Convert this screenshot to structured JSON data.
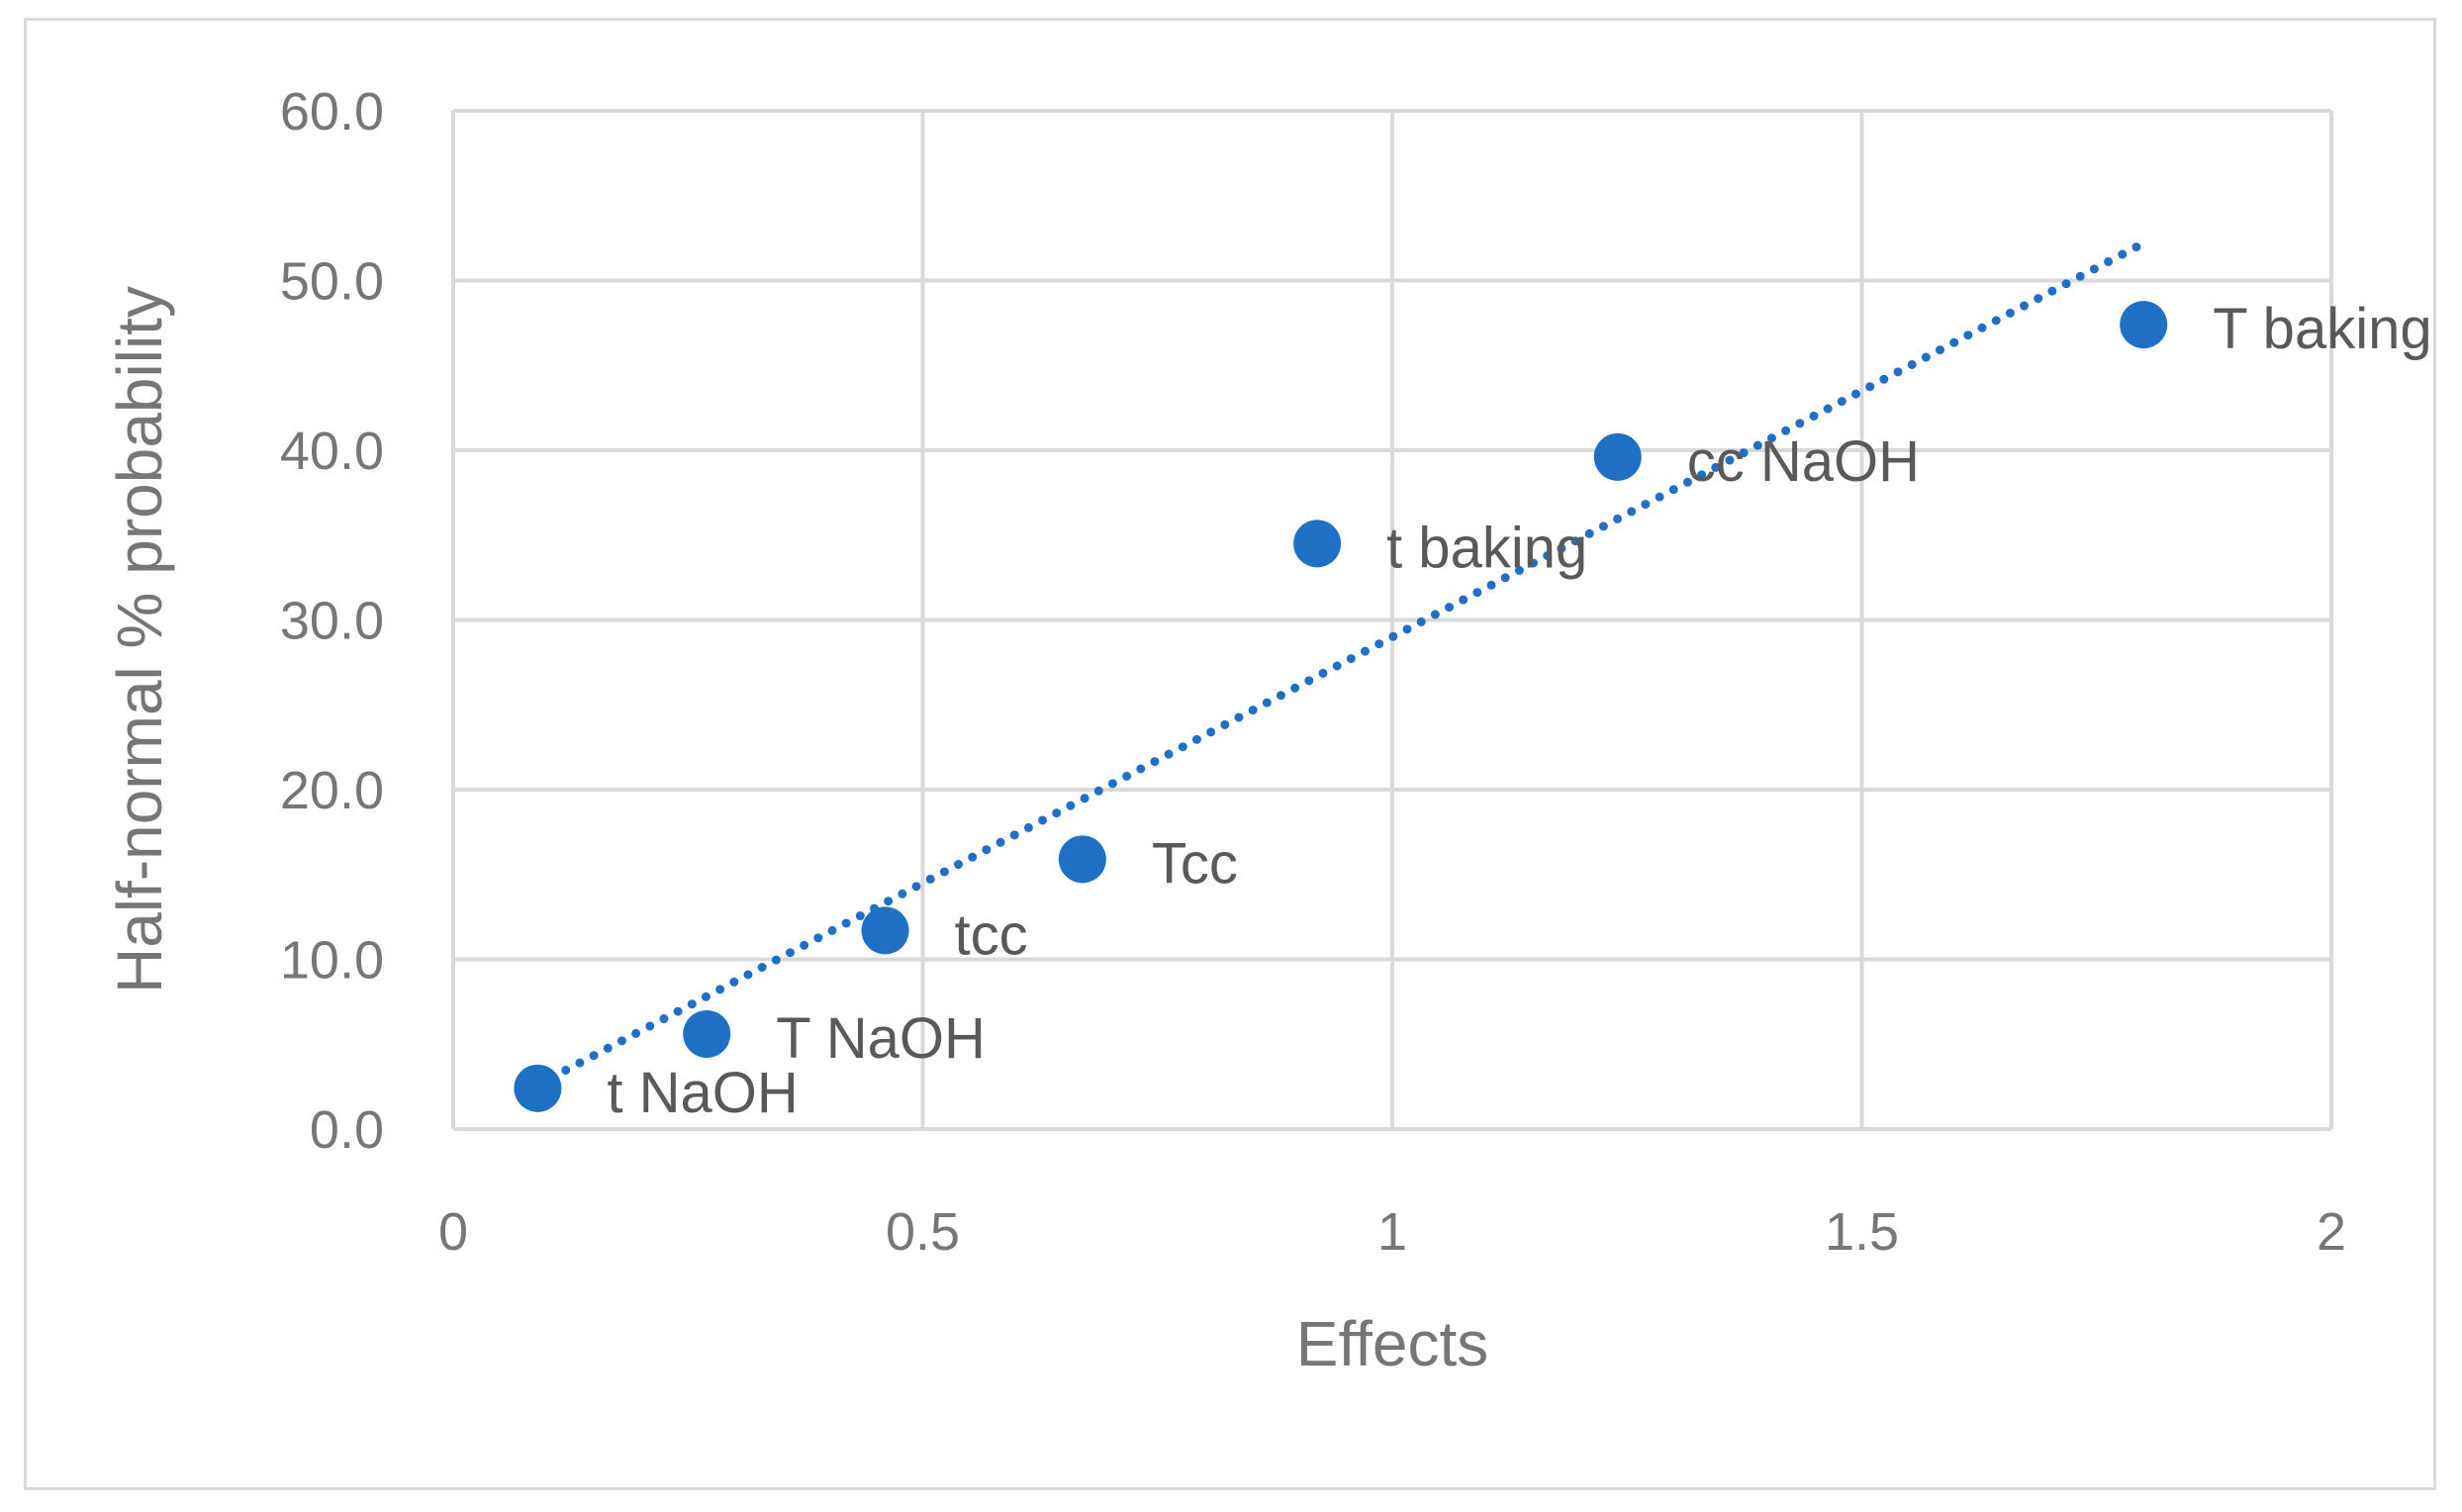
{
  "chart_data": {
    "type": "scatter",
    "title": "",
    "xlabel": "Effects",
    "ylabel": "Half-normal  % probability",
    "xlim": [
      0,
      2
    ],
    "ylim": [
      0,
      60
    ],
    "x_ticks": [
      "0",
      "0.5",
      "1",
      "1.5",
      "2"
    ],
    "y_ticks": [
      "0.0",
      "10.0",
      "20.0",
      "30.0",
      "40.0",
      "50.0",
      "60.0"
    ],
    "grid": true,
    "legend": "none",
    "marker_color": "#1f6fc5",
    "trendline": {
      "style": "dotted",
      "color": "#1f6fc5",
      "x": [
        0.09,
        1.8
      ],
      "y": [
        2.6,
        52.2
      ]
    },
    "points": [
      {
        "x": 0.09,
        "y": 2.4,
        "label": "t NaOH"
      },
      {
        "x": 0.27,
        "y": 5.6,
        "label": "T NaOH"
      },
      {
        "x": 0.46,
        "y": 11.7,
        "label": "tcc"
      },
      {
        "x": 0.67,
        "y": 15.9,
        "label": "Tcc"
      },
      {
        "x": 0.92,
        "y": 34.5,
        "label": "t baking"
      },
      {
        "x": 1.24,
        "y": 39.6,
        "label": "cc NaOH"
      },
      {
        "x": 1.8,
        "y": 47.4,
        "label": "T baking"
      }
    ]
  }
}
